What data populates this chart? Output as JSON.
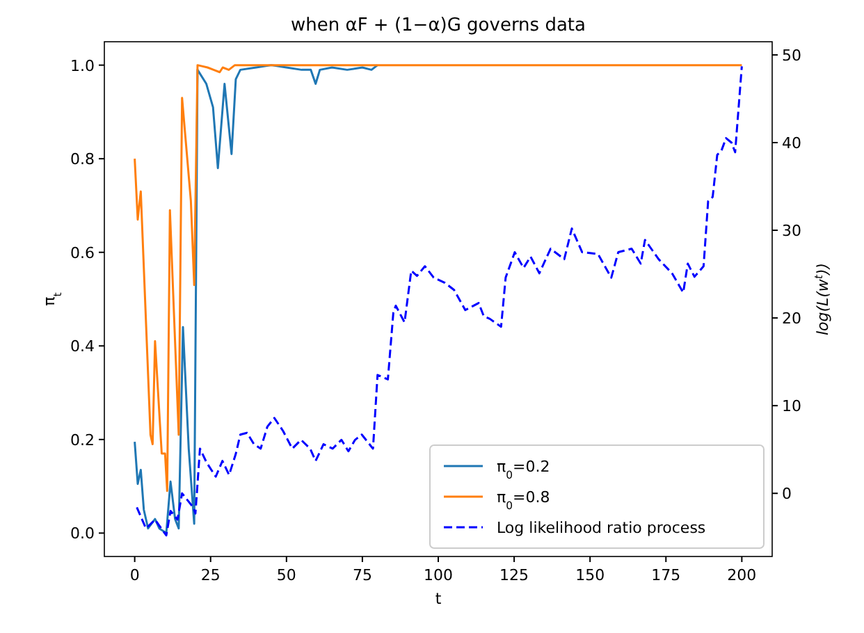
{
  "chart_data": {
    "type": "line",
    "title": "when αF + (1−α)G governs data",
    "xlabel": "t",
    "ylabel": "π$_{t}$",
    "y2label": "log(L(w$^{t}$))",
    "xlim": [
      -10,
      210
    ],
    "xticks": [
      0,
      25,
      50,
      75,
      100,
      125,
      150,
      175,
      200
    ],
    "ylim": [
      -0.05,
      1.05
    ],
    "yticks": [
      {
        "value": 0,
        "label": "0.0"
      },
      {
        "value": 0.2,
        "label": "0.2"
      },
      {
        "value": 0.4,
        "label": "0.4"
      },
      {
        "value": 0.6,
        "label": "0.6"
      },
      {
        "value": 0.8,
        "label": "0.8"
      },
      {
        "value": 1,
        "label": "1.0"
      }
    ],
    "y2lim": [
      -7.2,
      51.5
    ],
    "y2ticks": [
      0,
      10,
      20,
      30,
      40,
      50
    ],
    "grid": false,
    "legend": "bottom right",
    "marker": "none",
    "series": [
      {
        "name": "π$_{0}$=0.2",
        "color": "#1f77b4",
        "line_style": "solid",
        "x": [
          0,
          1,
          2,
          3,
          4.4,
          6.7,
          8.1,
          10.4,
          11.8,
          13.3,
          14.5,
          15.9,
          17.8,
          19.6,
          20.7,
          23.6,
          25.8,
          27.4,
          29.6,
          31.9,
          33.3,
          34.8,
          40,
          45,
          50,
          55,
          58,
          59.6,
          61,
          65,
          70,
          75,
          78,
          80
        ],
        "values": [
          0.195,
          0.105,
          0.135,
          0.05,
          0.01,
          0.03,
          0.01,
          0.0,
          0.11,
          0.03,
          0.01,
          0.44,
          0.18,
          0.02,
          0.99,
          0.96,
          0.91,
          0.78,
          0.96,
          0.81,
          0.97,
          0.99,
          0.995,
          1.0,
          0.995,
          0.99,
          0.99,
          0.96,
          0.99,
          0.995,
          0.99,
          0.995,
          0.99,
          1.0
        ]
      },
      {
        "name": "π$_{0}$=0.8",
        "color": "#ff7f0e",
        "line_style": "solid",
        "x": [
          0,
          1,
          2,
          5.2,
          5.9,
          6.7,
          8.9,
          10,
          10.7,
          11.6,
          14.5,
          15.6,
          18.5,
          19.6,
          20.7,
          24,
          26,
          28,
          29,
          31,
          33,
          200
        ],
        "values": [
          0.8,
          0.67,
          0.73,
          0.21,
          0.19,
          0.41,
          0.17,
          0.17,
          0.09,
          0.69,
          0.21,
          0.93,
          0.71,
          0.53,
          1.0,
          0.995,
          0.99,
          0.985,
          0.995,
          0.99,
          1.0,
          1.0
        ]
      },
      {
        "name": "Log likelihood ratio process",
        "color": "#0000ff",
        "line_style": "dashed",
        "axis": "y2",
        "x": [
          0.7,
          3.7,
          6.7,
          10.4,
          11.8,
          14.1,
          15.6,
          19.3,
          20,
          21.5,
          23.7,
          26.7,
          28.9,
          31.1,
          33.3,
          34.8,
          37,
          39.3,
          41.5,
          43.7,
          46,
          48.9,
          51.9,
          54.8,
          57.8,
          59.6,
          62.2,
          65.2,
          68.1,
          70.4,
          72.6,
          74.8,
          78.5,
          80,
          83.4,
          85.2,
          86,
          88.9,
          91.1,
          93,
          95.6,
          98.5,
          102.2,
          105.2,
          108.9,
          113.3,
          115,
          117,
          120.7,
          122.2,
          125.2,
          128.1,
          130.4,
          133.3,
          137,
          141.5,
          144,
          147.4,
          152.6,
          157,
          159.3,
          163.7,
          166.7,
          168.1,
          172.6,
          177,
          180.7,
          182.2,
          184.4,
          187.4,
          188.9,
          190.4,
          191.9,
          193.3,
          194.8,
          196.6,
          197.8,
          200
        ],
        "values": [
          -1.6,
          -4.0,
          -3.0,
          -4.8,
          -2.0,
          -3.0,
          0,
          -1.6,
          -2.3,
          5.1,
          3.5,
          1.9,
          3.7,
          2.1,
          4.5,
          6.7,
          6.9,
          5.6,
          5.1,
          7.6,
          8.6,
          7.1,
          5.1,
          6.1,
          5.1,
          3.7,
          5.6,
          5.1,
          6.1,
          4.8,
          6.1,
          6.7,
          5.1,
          13.5,
          13.0,
          20.6,
          21.4,
          19.5,
          25.4,
          24.8,
          25.9,
          24.6,
          24.0,
          23.2,
          20.9,
          21.7,
          20.2,
          19.9,
          19.0,
          24.6,
          27.5,
          25.7,
          27.0,
          25.1,
          27.9,
          26.7,
          30.2,
          27.5,
          27.3,
          24.6,
          27.5,
          27.9,
          26.2,
          28.9,
          26.7,
          25.1,
          22.9,
          26.2,
          24.7,
          25.9,
          33.3,
          33.8,
          38.6,
          39.1,
          40.5,
          40.0,
          38.9,
          48.7
        ]
      }
    ]
  }
}
